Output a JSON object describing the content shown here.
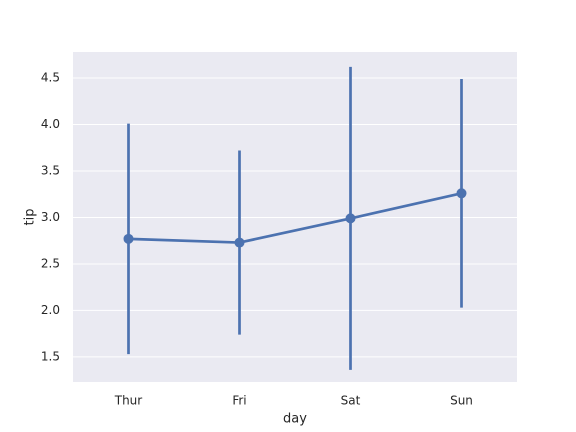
{
  "chart_data": {
    "type": "point",
    "x_label": "day",
    "y_label": "tip",
    "categories": [
      "Thur",
      "Fri",
      "Sat",
      "Sun"
    ],
    "values": [
      2.77,
      2.73,
      2.99,
      3.26
    ],
    "errors": [
      1.24,
      0.99,
      1.63,
      1.23
    ],
    "color": "#4c72b0",
    "ylim": [
      1.23,
      4.78
    ],
    "yticks": [
      1.5,
      {
        "value": 2,
        "label": "2.0"
      },
      2.5,
      {
        "value": 3,
        "label": "3.0"
      },
      3.5,
      {
        "value": 4,
        "label": "4.0"
      },
      4.5
    ],
    "grid": true
  }
}
